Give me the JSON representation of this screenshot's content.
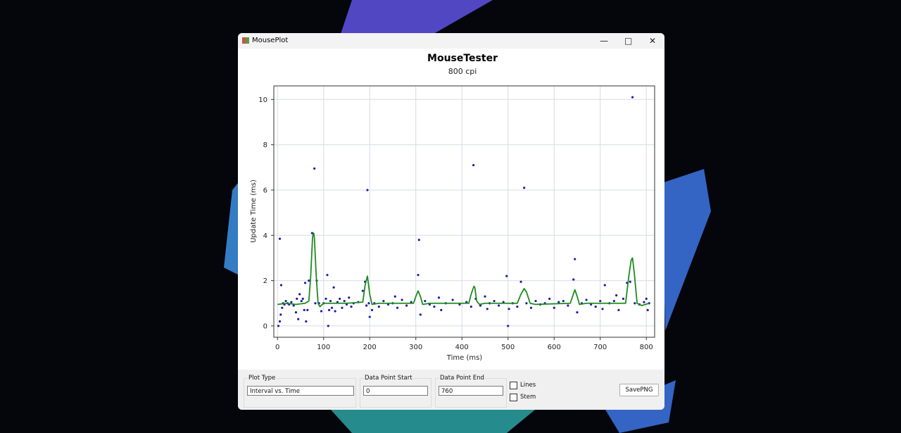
{
  "window": {
    "title": "MousePlot",
    "plot_type_label": "Plot Type",
    "plot_type": "Interval vs. Time",
    "start_label": "Data Point Start",
    "start": 0,
    "end_label": "Data Point End",
    "end": 760,
    "lines": "Lines",
    "stem": "Stem",
    "save": "SavePNG"
  },
  "chart_data": {
    "type": "scatter",
    "title": "MouseTester",
    "subtitle": "800 cpi",
    "x_label": "Time (ms)",
    "y_label": "Update Time (ms)",
    "xlim": [
      -8,
      818
    ],
    "ylim": [
      -0.5,
      10.6
    ],
    "xticks": [
      0,
      100,
      200,
      300,
      400,
      500,
      600,
      700,
      800
    ],
    "yticks": [
      0,
      2,
      4,
      6,
      8,
      10
    ],
    "grid": true,
    "series": [
      {
        "style": "markers",
        "color": "#1c1ca8",
        "x": [
          5,
          8,
          2,
          5,
          7,
          10,
          12,
          15,
          18,
          22,
          25,
          30,
          35,
          40,
          42,
          45,
          48,
          52,
          55,
          58,
          60,
          62,
          65,
          68,
          75,
          78,
          80,
          82,
          85,
          90,
          95,
          100,
          105,
          108,
          110,
          112,
          115,
          118,
          122,
          125,
          130,
          135,
          140,
          145,
          150,
          155,
          160,
          165,
          175,
          185,
          190,
          193,
          195,
          198,
          200,
          205,
          210,
          220,
          230,
          240,
          250,
          255,
          260,
          270,
          280,
          290,
          305,
          307,
          310,
          320,
          330,
          340,
          350,
          355,
          365,
          380,
          395,
          410,
          420,
          425,
          430,
          440,
          450,
          455,
          460,
          470,
          480,
          490,
          497,
          500,
          502,
          510,
          520,
          528,
          535,
          540,
          550,
          560,
          570,
          580,
          590,
          600,
          610,
          620,
          630,
          642,
          645,
          650,
          660,
          670,
          680,
          690,
          700,
          705,
          710,
          720,
          730,
          735,
          740,
          750,
          758,
          765,
          770,
          775,
          785,
          795,
          800,
          803,
          806
        ],
        "values": [
          3.85,
          1.8,
          0,
          0.2,
          0.5,
          0.8,
          1.0,
          0.95,
          1.1,
          1.0,
          0.95,
          1.05,
          0.9,
          0.6,
          1.2,
          0.3,
          1.4,
          1.1,
          1.2,
          0.7,
          1.9,
          0.2,
          0.7,
          2.0,
          4.1,
          4.05,
          6.95,
          1.0,
          2.0,
          1.0,
          0.65,
          1.0,
          1.2,
          2.25,
          0,
          0.7,
          1.1,
          0.8,
          1.7,
          0.65,
          1.05,
          1.2,
          0.8,
          1.1,
          0.95,
          1.25,
          0.85,
          1.0,
          1.05,
          1.55,
          1.95,
          0.9,
          6.0,
          1.0,
          0.4,
          0.7,
          1.0,
          0.85,
          1.1,
          0.95,
          1.0,
          1.3,
          0.8,
          1.15,
          0.9,
          1.05,
          2.25,
          3.8,
          0.5,
          1.1,
          0.95,
          0.85,
          1.25,
          0.7,
          1.0,
          1.15,
          0.95,
          1.05,
          0.85,
          7.1,
          1.2,
          0.9,
          1.3,
          0.75,
          1.0,
          1.1,
          0.9,
          1.05,
          2.2,
          0.0,
          0.75,
          1.0,
          0.85,
          1.95,
          6.1,
          1.0,
          0.8,
          1.1,
          0.95,
          1.0,
          1.2,
          0.8,
          1.05,
          1.1,
          0.9,
          2.05,
          2.95,
          0.6,
          1.0,
          1.15,
          0.95,
          0.85,
          1.1,
          0.75,
          1.8,
          1.0,
          1.1,
          1.35,
          0.7,
          1.2,
          1.9,
          1.95,
          10.1,
          1.0,
          0.95,
          1.05,
          1.2,
          0.7,
          1.0
        ]
      },
      {
        "style": "line",
        "color": "#1f8a1f",
        "x": [
          0,
          20,
          40,
          60,
          68,
          72,
          76,
          78,
          80,
          84,
          88,
          92,
          100,
          150,
          185,
          190,
          195,
          200,
          205,
          220,
          295,
          300,
          305,
          310,
          315,
          330,
          415,
          420,
          426,
          428,
          432,
          438,
          450,
          520,
          528,
          535,
          540,
          548,
          560,
          635,
          640,
          645,
          650,
          655,
          670,
          755,
          762,
          767,
          770,
          774,
          780,
          790,
          806
        ],
        "values": [
          0.95,
          1.0,
          0.95,
          1.0,
          1.1,
          2.2,
          3.9,
          4.1,
          3.9,
          2.2,
          1.0,
          0.85,
          1.0,
          1.0,
          1.05,
          1.8,
          2.2,
          1.4,
          0.95,
          1.0,
          1.0,
          1.3,
          1.55,
          1.3,
          0.95,
          1.0,
          1.0,
          1.4,
          1.75,
          1.7,
          1.1,
          0.95,
          1.0,
          1.0,
          1.4,
          1.65,
          1.5,
          1.0,
          0.95,
          1.0,
          1.3,
          1.6,
          1.3,
          0.95,
          1.0,
          1.0,
          2.2,
          2.9,
          3.0,
          2.3,
          1.0,
          0.9,
          1.0
        ]
      }
    ]
  }
}
